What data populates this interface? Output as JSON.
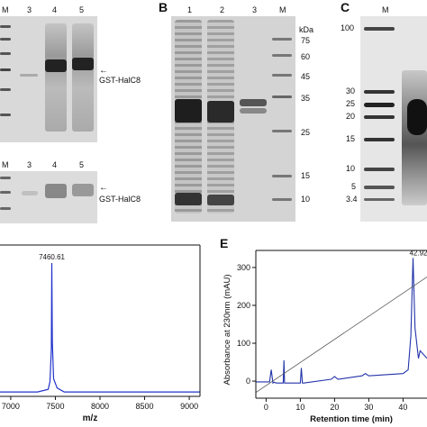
{
  "panels": {
    "A": {
      "top_lanes": [
        "M",
        "3",
        "4",
        "5"
      ],
      "bottom_lanes": [
        "M",
        "3",
        "4",
        "5"
      ],
      "top_annotation": "GST-HalC8",
      "bottom_annotation": "GST-HalC8"
    },
    "B": {
      "letter": "B",
      "lanes": [
        "1",
        "2",
        "3",
        "M"
      ],
      "unit": "kDa",
      "markers": [
        "75",
        "60",
        "45",
        "35",
        "25",
        "15",
        "10"
      ]
    },
    "C": {
      "letter": "C",
      "lanes": [
        "M"
      ],
      "markers": [
        "100",
        "30",
        "25",
        "20",
        "15",
        "10",
        "5",
        "3.4"
      ]
    },
    "D": {
      "xlabel": "m/z",
      "peak_label": "7460.61"
    },
    "E": {
      "letter": "E",
      "ylabel": "Absorbance at 230nm (mAU)",
      "xlabel": "Retention time (min)",
      "peak_label": "42.92"
    }
  },
  "chart_data": [
    {
      "type": "line",
      "panel": "D",
      "xlabel": "m/z",
      "x_ticks": [
        7000,
        7500,
        8000,
        8500,
        9000
      ],
      "xlim": [
        6880,
        9120
      ],
      "peak": {
        "x": 7460.61,
        "label": "7460.61"
      },
      "series": [
        {
          "x": [
            6880,
            7300,
            7420,
            7440,
            7455,
            7460.61,
            7466,
            7480,
            7520,
            7600,
            8000,
            9120
          ],
          "y": [
            0.02,
            0.02,
            0.04,
            0.1,
            0.35,
            1.0,
            0.4,
            0.12,
            0.05,
            0.02,
            0.02,
            0.02
          ]
        }
      ]
    },
    {
      "type": "line",
      "panel": "E",
      "xlabel": "Retention time (min)",
      "ylabel": "Absorbance at 230nm (mAU)",
      "x_ticks": [
        0,
        10,
        20,
        30,
        40
      ],
      "y_ticks": [
        0,
        100,
        200,
        300
      ],
      "xlim": [
        -3,
        47
      ],
      "ylim": [
        -45,
        345
      ],
      "peak": {
        "x": 42.92,
        "label": "42.92"
      },
      "series": [
        {
          "x": [
            -3,
            1,
            1.5,
            2,
            2.3,
            3,
            5,
            5.2,
            5.4,
            6,
            10,
            10.3,
            10.6,
            11,
            19,
            20,
            21,
            28,
            29,
            30,
            40,
            41.5,
            42.3,
            42.92,
            43.5,
            44.5,
            45,
            47
          ],
          "y": [
            -2,
            -2,
            30,
            -5,
            -3,
            -5,
            -5,
            55,
            -5,
            -5,
            -5,
            35,
            -5,
            -5,
            5,
            12,
            5,
            14,
            20,
            14,
            20,
            30,
            120,
            325,
            140,
            60,
            80,
            60
          ]
        },
        {
          "x": [
            -3,
            47
          ],
          "y": [
            -30,
            275
          ]
        }
      ]
    }
  ]
}
